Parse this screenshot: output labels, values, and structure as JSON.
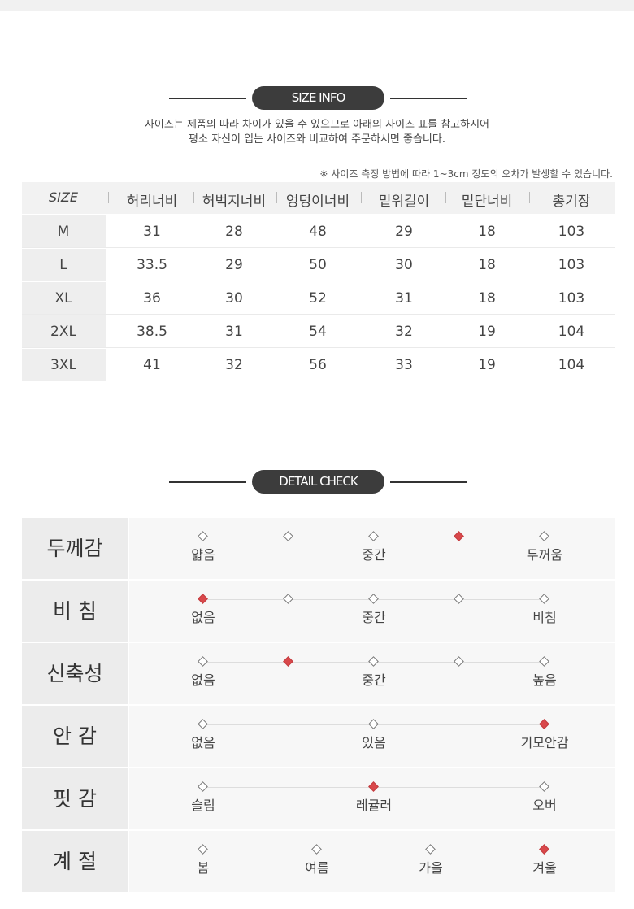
{
  "size_info": {
    "title": "SIZE INFO",
    "description": [
      "사이즈는 제품의 따라 차이가 있을 수 있으므로 아래의 사이즈 표를 참고하시어",
      "평소 자신이 입는 사이즈와 비교하여 주문하시면 좋습니다."
    ],
    "note": "※ 사이즈 측정 방법에 따라 1~3cm 정도의 오차가 발생할 수 있습니다.",
    "table": {
      "header": [
        "SIZE",
        "허리너비",
        "허벅지너비",
        "엉덩이너비",
        "밑위길이",
        "밑단너비",
        "총기장"
      ],
      "rows": [
        [
          "M",
          "31",
          "28",
          "48",
          "29",
          "18",
          "103"
        ],
        [
          "L",
          "33.5",
          "29",
          "50",
          "30",
          "18",
          "103"
        ],
        [
          "XL",
          "36",
          "30",
          "52",
          "31",
          "18",
          "103"
        ],
        [
          "2XL",
          "38.5",
          "31",
          "54",
          "32",
          "19",
          "104"
        ],
        [
          "3XL",
          "41",
          "32",
          "56",
          "33",
          "19",
          "104"
        ]
      ]
    }
  },
  "detail_check": {
    "title": "DETAIL CHECK",
    "rows": [
      {
        "label": "두께감",
        "options": [
          "얇음",
          null,
          "중간",
          null,
          "두꺼움"
        ],
        "selected": 3
      },
      {
        "label": "비 침",
        "options": [
          "없음",
          null,
          "중간",
          null,
          "비침"
        ],
        "selected": 0
      },
      {
        "label": "신축성",
        "options": [
          "없음",
          null,
          "중간",
          null,
          "높음"
        ],
        "selected": 1
      },
      {
        "label": "안 감",
        "options": [
          "없음",
          "있음",
          "기모안감"
        ],
        "selected": 2
      },
      {
        "label": "핏 감",
        "options": [
          "슬림",
          "레귤러",
          "오버"
        ],
        "selected": 1
      },
      {
        "label": "계 절",
        "options": [
          "봄",
          "여름",
          "가을",
          "겨울"
        ],
        "selected": 3
      }
    ]
  }
}
